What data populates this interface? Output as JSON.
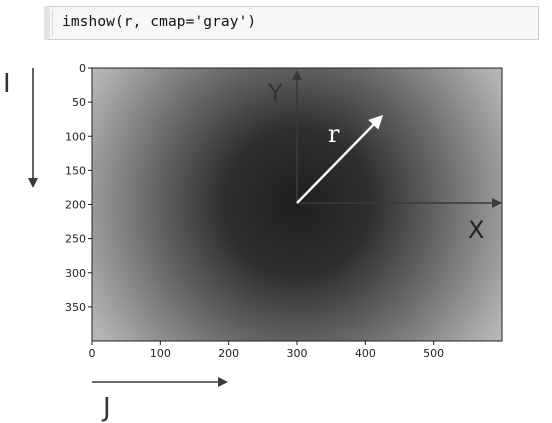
{
  "code_cell": {
    "text": "imshow(r, cmap='gray')"
  },
  "chart_data": {
    "type": "heatmap",
    "colormap": "gray",
    "center": [
      300,
      200
    ],
    "xlim": [
      0,
      600
    ],
    "ylim": [
      400,
      0
    ],
    "xticks": [
      0,
      100,
      200,
      300,
      400,
      500
    ],
    "yticks": [
      0,
      50,
      100,
      150,
      200,
      250,
      300,
      350
    ],
    "annotations": {
      "y_axis_label": "Y",
      "x_axis_label": "X",
      "radius_label": "r",
      "row_index_label": "I",
      "col_index_label": "J"
    }
  },
  "colors": {
    "arrow": "#3a3a3a",
    "radius_arrow": "#ffffff",
    "center_dark": "#262626",
    "edge_light": "#f2f2f2"
  }
}
